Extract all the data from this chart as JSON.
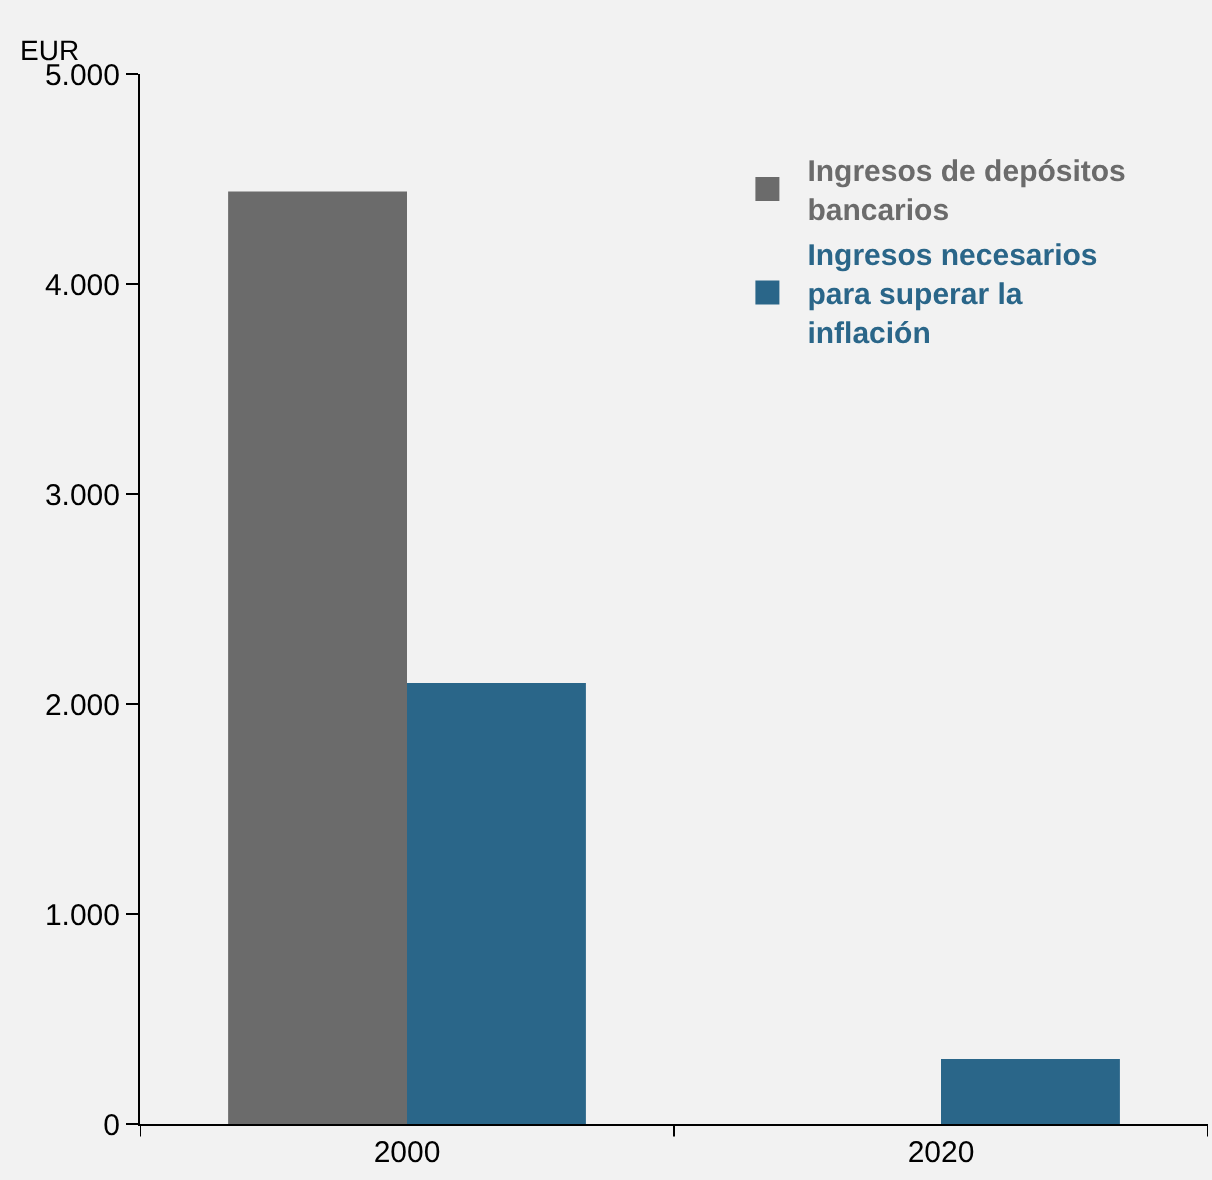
{
  "chart_data": {
    "type": "bar",
    "ylabel": "EUR",
    "categories": [
      "2000",
      "2020"
    ],
    "series": [
      {
        "name": "Ingresos de depósitos bancarios",
        "color": "#6b6b6b",
        "values": [
          4440,
          0
        ]
      },
      {
        "name": "Ingresos necesarios para superar la inflación",
        "color": "#2a6689",
        "values": [
          2100,
          310
        ]
      }
    ],
    "ylim": [
      0,
      5000
    ],
    "yticks": [
      {
        "value": 0,
        "label": "0"
      },
      {
        "value": 1000,
        "label": "1.000"
      },
      {
        "value": 2000,
        "label": "2.000"
      },
      {
        "value": 3000,
        "label": "3.000"
      },
      {
        "value": 4000,
        "label": "4.000"
      },
      {
        "value": 5000,
        "label": "5.000"
      }
    ],
    "grid": false,
    "legend": "top right"
  }
}
